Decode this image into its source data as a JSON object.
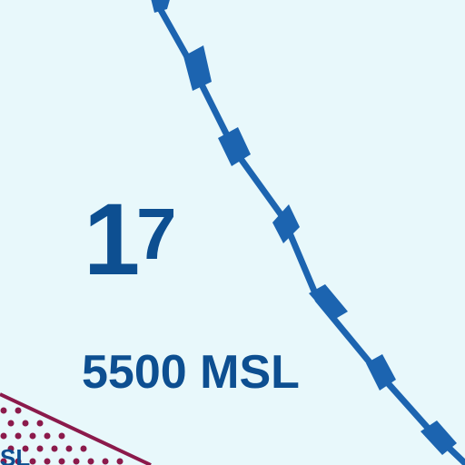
{
  "map": {
    "grid_number_main": "1",
    "grid_number_superscript": "7",
    "altitude_label": "5500 MSL",
    "cutoff_label": "SL"
  },
  "colors": {
    "background": "#e8f8fb",
    "boundary_blue": "#1c64b0",
    "label_blue": "#0d4f91",
    "maroon_boundary": "#8b1a4b"
  },
  "symbols": {
    "boundary_line": "airspace-boundary-ticked",
    "shaded_band": "maroon-dotted-boundary"
  }
}
